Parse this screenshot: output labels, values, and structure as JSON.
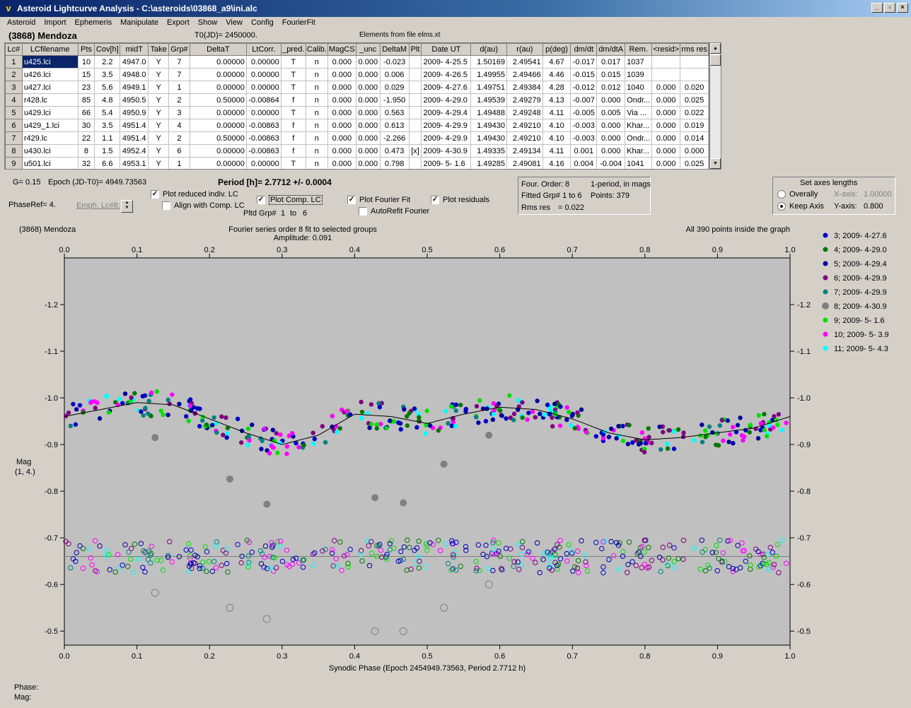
{
  "window": {
    "title": "Asteroid Lightcurve Analysis - C:\\asteroids\\03868_a9\\ini.alc",
    "app_icon": "v"
  },
  "menu": [
    "Asteroid",
    "Import",
    "Ephemeris",
    "Manipulate",
    "Export",
    "Show",
    "View",
    "Config",
    "FourierFit"
  ],
  "header": {
    "object": "(3868) Mendoza",
    "t0": "T0(JD)= 2450000.",
    "elements": "Elements from file elms.xt"
  },
  "table": {
    "columns": [
      "Lc#",
      "LCfilename",
      "Pts",
      "Cov[h]",
      "midT",
      "Take",
      "Grp#",
      "DeltaT",
      "LtCorr.",
      "_pred.",
      "Calib.",
      "MagCS",
      "_unc",
      "DeltaM",
      "Plt",
      "Date UT",
      "d(au)",
      "r(au)",
      "p(deg)",
      "dm/dt",
      "dm/dtA",
      "Rem.",
      "<resid>",
      "rms res"
    ],
    "rows": [
      [
        "1",
        "u425.lci",
        "10",
        "2.2",
        "4947.0",
        "Y",
        "7",
        "0.00000",
        "0.00000",
        "T",
        "n",
        "0.000",
        "0.000",
        "-0.023",
        "",
        "2009- 4-25.5",
        "1.50169",
        "2.49541",
        "4.67",
        "-0.017",
        "0.017",
        "1037",
        "",
        ""
      ],
      [
        "2",
        "u426.lci",
        "15",
        "3.5",
        "4948.0",
        "Y",
        "7",
        "0.00000",
        "0.00000",
        "T",
        "n",
        "0.000",
        "0.000",
        "0.006",
        "",
        "2009- 4-26.5",
        "1.49955",
        "2.49466",
        "4.46",
        "-0.015",
        "0.015",
        "1039",
        "",
        ""
      ],
      [
        "3",
        "u427.lci",
        "23",
        "5.6",
        "4949.1",
        "Y",
        "1",
        "0.00000",
        "0.00000",
        "T",
        "n",
        "0.000",
        "0.000",
        "0.029",
        "",
        "2009- 4-27.6",
        "1.49751",
        "2.49384",
        "4.28",
        "-0.012",
        "0.012",
        "1040",
        "0.000",
        "0.020"
      ],
      [
        "4",
        "r428.lc",
        "85",
        "4.8",
        "4950.5",
        "Y",
        "2",
        "0.50000",
        "-0.00864",
        "f",
        "n",
        "0.000",
        "0.000",
        "-1.950",
        "",
        "2009- 4-29.0",
        "1.49539",
        "2.49279",
        "4.13",
        "-0.007",
        "0.000",
        "Ondr...",
        "0.000",
        "0.025"
      ],
      [
        "5",
        "u429.lci",
        "66",
        "5.4",
        "4950.9",
        "Y",
        "3",
        "0.00000",
        "0.00000",
        "T",
        "n",
        "0.000",
        "0.000",
        "0.563",
        "",
        "2009- 4-29.4",
        "1.49488",
        "2.49248",
        "4.11",
        "-0.005",
        "0.005",
        "Via ...",
        "0.000",
        "0.022"
      ],
      [
        "6",
        "u429_1.lci",
        "30",
        "3.5",
        "4951.4",
        "Y",
        "4",
        "0.00000",
        "-0.00863",
        "f",
        "n",
        "0.000",
        "0.000",
        "0.613",
        "",
        "2009- 4-29.9",
        "1.49430",
        "2.49210",
        "4.10",
        "-0.003",
        "0.000",
        "Khar...",
        "0.000",
        "0.019"
      ],
      [
        "7",
        "r429.lc",
        "22",
        "1.1",
        "4951.4",
        "Y",
        "2",
        "0.50000",
        "-0.00863",
        "f",
        "n",
        "0.000",
        "0.000",
        "-2.266",
        "",
        "2009- 4-29.9",
        "1.49430",
        "2.49210",
        "4.10",
        "-0.003",
        "0.000",
        "Ondr...",
        "0.000",
        "0.014"
      ],
      [
        "8",
        "u430.lci",
        "8",
        "1.5",
        "4952.4",
        "Y",
        "6",
        "0.00000",
        "-0.00863",
        "f",
        "n",
        "0.000",
        "0.000",
        "0.473",
        "[x]",
        "2009- 4-30.9",
        "1.49335",
        "2.49134",
        "4.11",
        "0.001",
        "0.000",
        "Khar...",
        "0.000",
        "0.000"
      ],
      [
        "9",
        "u501.lci",
        "32",
        "6.6",
        "4953.1",
        "Y",
        "1",
        "0.00000",
        "0.00000",
        "T",
        "n",
        "0.000",
        "0.000",
        "0.798",
        "",
        "2009- 5- 1.6",
        "1.49285",
        "2.49081",
        "4.16",
        "0.004",
        "-0.004",
        "1041",
        "0.000",
        "0.025"
      ]
    ]
  },
  "controls": {
    "g": "G= 0.15",
    "epoch": "Epoch (JD-T0)= 4949.73563",
    "period": "Period [h]= 2.7712 +/- 0.0004",
    "phaseref": "PhaseRef= 4.",
    "emph": "Emph. Lc#8:",
    "plot_reduced": "Plot reduced indiv. LC",
    "align": "Align with Comp. LC",
    "plot_comp": "Plot Comp. LC",
    "pltd_grp": "Pltd Grp#",
    "grp_from": "1",
    "grp_to_label": "to",
    "grp_to": "6",
    "plot_fourier": "Plot Fourier Fit",
    "autorefit": "AutoRefit Fourier",
    "plot_resid": "Plot residuals",
    "four_order": "Four. Order:",
    "four_order_val": "8",
    "period_mode": "1-period, in mags",
    "fitted": "Fitted Grp# 1 to 6",
    "points": "Points: 379",
    "rms": "Rms res",
    "rms_val": "= 0.022",
    "axes_title": "Set axes lengths",
    "overally": "Overally",
    "keep_axis": "Keep Axis",
    "xaxis_label": "X-axis:",
    "xaxis_val": "1.00000",
    "yaxis_label": "Y-axis:",
    "yaxis_val": "0.800"
  },
  "plot": {
    "object": "(3868) Mendoza",
    "fit_title": "Fourier series order 8 fit to selected groups",
    "amplitude": "Amplitude: 0.091",
    "inside": "All 390 points inside the graph",
    "ylabel": "Mag",
    "ylabel2": "(1, 4.)",
    "xlabel": "Synodic Phase (Epoch 2454949.73563, Period 2.7712 h)"
  },
  "chart_data": {
    "type": "scatter",
    "xlim": [
      0.0,
      1.0
    ],
    "ylim": [
      -1.3,
      -0.47
    ],
    "y_inverted": true,
    "xticks": [
      "0.0",
      "0.1",
      "0.2",
      "0.3",
      "0.4",
      "0.5",
      "0.6",
      "0.7",
      "0.8",
      "0.9",
      "1.0"
    ],
    "yticks": [
      "-1.2",
      "-1.1",
      "-1.0",
      "-0.9",
      "-0.8",
      "-0.7",
      "-0.6",
      "-0.5"
    ],
    "fit_curve": {
      "x": [
        0.0,
        0.05,
        0.1,
        0.15,
        0.2,
        0.25,
        0.3,
        0.35,
        0.4,
        0.45,
        0.5,
        0.55,
        0.6,
        0.65,
        0.7,
        0.75,
        0.8,
        0.85,
        0.9,
        0.95,
        1.0
      ],
      "y": [
        -0.96,
        -0.975,
        -0.99,
        -0.985,
        -0.955,
        -0.925,
        -0.9,
        -0.92,
        -0.965,
        -0.96,
        -0.945,
        -0.965,
        -0.98,
        -0.975,
        -0.955,
        -0.925,
        -0.91,
        -0.915,
        -0.925,
        -0.935,
        -0.96
      ]
    },
    "residual_line": -0.66,
    "series": [
      {
        "name": "3; 2009- 4-27.6",
        "color": "#0000c8"
      },
      {
        "name": "4; 2009- 4-29.0",
        "color": "#007800"
      },
      {
        "name": "5; 2009- 4-29.4",
        "color": "#0000a0"
      },
      {
        "name": "6; 2009- 4-29.9",
        "color": "#800080"
      },
      {
        "name": "7; 2009- 4-29.9",
        "color": "#008080"
      },
      {
        "name": "8; 2009- 4-30.9",
        "color": "#808080"
      },
      {
        "name": "9; 2009- 5- 1.6",
        "color": "#00e000"
      },
      {
        "name": "10; 2009- 5- 3.9",
        "color": "#ff00ff"
      },
      {
        "name": "11; 2009- 5- 4.3",
        "color": "#00ffff"
      }
    ],
    "outliers_group8": {
      "x": [
        0.125,
        0.228,
        0.279,
        0.428,
        0.467,
        0.523,
        0.585
      ],
      "y": [
        -0.915,
        -0.826,
        -0.772,
        -0.786,
        -0.775,
        -0.858,
        -0.92
      ],
      "resid_y": [
        -0.582,
        -0.55,
        -0.526,
        -0.5,
        -0.5,
        -0.55,
        -0.6
      ]
    },
    "scatter_points": 390
  },
  "status": {
    "phase": "Phase:",
    "mag": "Mag:"
  }
}
